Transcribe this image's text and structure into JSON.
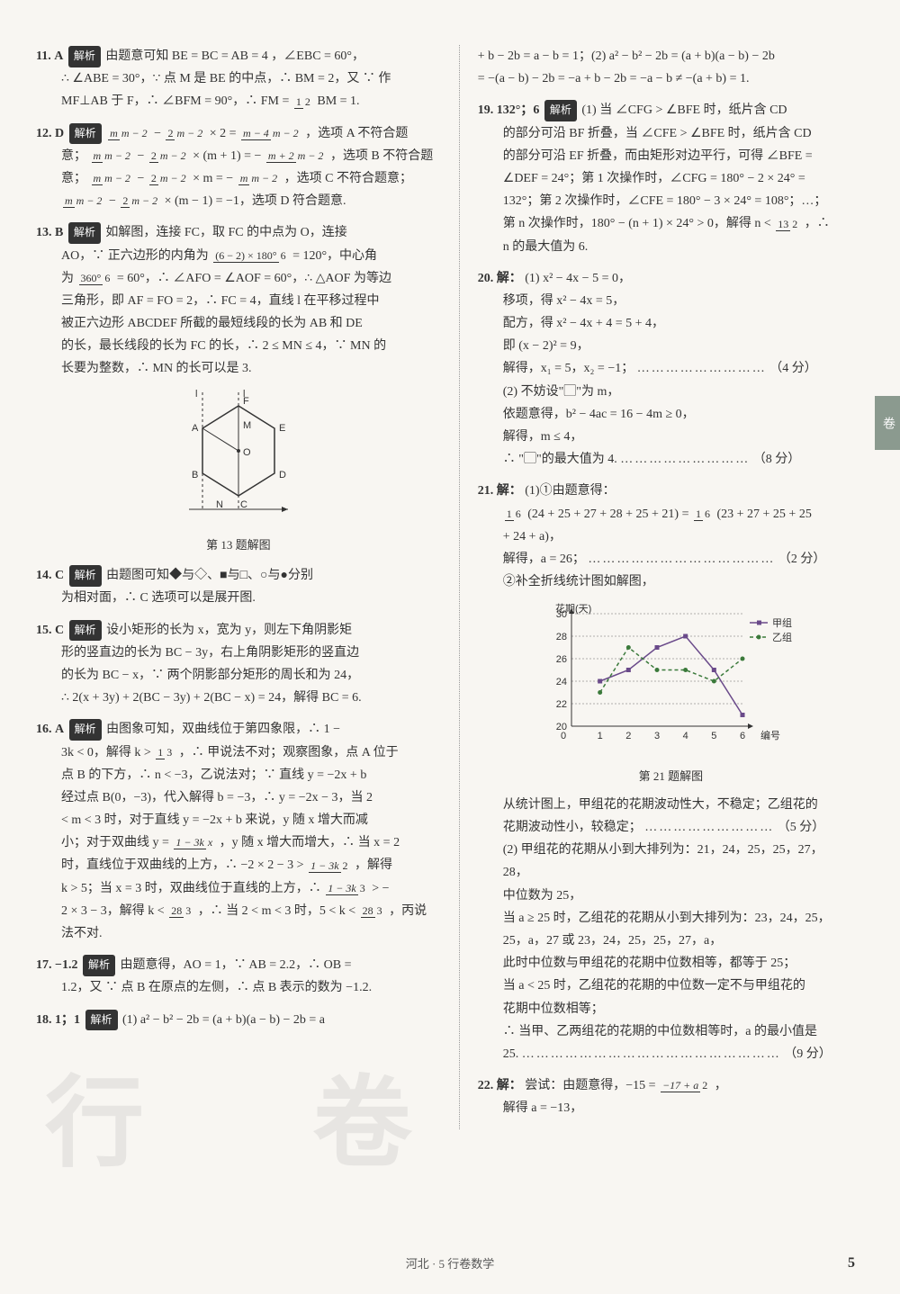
{
  "left": {
    "q11": {
      "num": "11.",
      "ans": "A",
      "tag": "解析",
      "t1": "由题意可知 BE = BC = AB = 4 ，∠EBC = 60°，",
      "t2": "∴ ∠ABE = 30°，∵ 点 M 是 BE 的中点，∴ BM = 2，又 ∵ 作",
      "t3_a": "MF⊥AB 于 F，∴ ∠BFM = 90°，∴ FM =",
      "f1n": "1",
      "f1d": "2",
      "t3_b": "BM = 1."
    },
    "q12": {
      "num": "12.",
      "ans": "D",
      "tag": "解析",
      "l1a": "m",
      "l1b": "m − 2",
      "l1c": "2",
      "l1d": "m − 2",
      "l1e": "× 2 =",
      "l1f": "m − 4",
      "l1g": "m − 2",
      "l1h": "，选项 A 不符合题",
      "l2a": "意；",
      "l2b": "m",
      "l2c": "m − 2",
      "l2d": "2",
      "l2e": "m − 2",
      "l2f": "× (m + 1) = −",
      "l2g": "m + 2",
      "l2h": "m − 2",
      "l2i": "，选项 B 不符合题",
      "l3a": "意；",
      "l3b": "m",
      "l3c": "m − 2",
      "l3d": "2",
      "l3e": "m − 2",
      "l3f": "× m = −",
      "l3g": "m",
      "l3h": "m − 2",
      "l3i": "，选项 C 不符合题意；",
      "l4a": "m",
      "l4b": "m − 2",
      "l4c": "2",
      "l4d": "m − 2",
      "l4e": "× (m − 1) = −1，选项 D 符合题意."
    },
    "q13": {
      "num": "13.",
      "ans": "B",
      "tag": "解析",
      "t1": "如解图，连接 FC，取 FC 的中点为 O，连接",
      "t2a": "AO，∵ 正六边形的内角为",
      "f1n": "(6 − 2) × 180°",
      "f1d": "6",
      "t2b": "= 120°，中心角",
      "t3a": "为",
      "f2n": "360°",
      "f2d": "6",
      "t3b": "= 60°，∴ ∠AFO = ∠AOF = 60°，∴ △AOF 为等边",
      "t4": "三角形，即 AF = FO = 2，∴ FC = 4，直线 l 在平移过程中",
      "t5": "被正六边形 ABCDEF 所截的最短线段的长为 AB 和 DE",
      "t6": "的长，最长线段的长为 FC 的长，∴ 2 ≤ MN ≤ 4，∵ MN 的",
      "t7": "长要为整数，∴ MN 的长可以是 3.",
      "caption": "第 13 题解图",
      "hex": {
        "labels": [
          "A",
          "B",
          "C",
          "D",
          "E",
          "F",
          "M",
          "N",
          "O",
          "l",
          "l"
        ]
      }
    },
    "q14": {
      "num": "14.",
      "ans": "C",
      "tag": "解析",
      "t1": "由题图可知◆与◇、■与□、○与●分别",
      "t2": "为相对面，∴ C 选项可以是展开图."
    },
    "q15": {
      "num": "15.",
      "ans": "C",
      "tag": "解析",
      "t1": "设小矩形的长为 x，宽为 y，则左下角阴影矩",
      "t2": "形的竖直边的长为 BC − 3y，右上角阴影矩形的竖直边",
      "t3": "的长为 BC − x，∵ 两个阴影部分矩形的周长和为 24，",
      "t4": "∴ 2(x + 3y) + 2(BC − 3y) + 2(BC − x) = 24，解得 BC = 6."
    },
    "q16": {
      "num": "16.",
      "ans": "A",
      "tag": "解析",
      "t1": "由图象可知，双曲线位于第四象限，∴ 1 −",
      "t2a": "3k < 0，解得 k >",
      "f1n": "1",
      "f1d": "3",
      "t2b": "，∴ 甲说法不对；观察图象，点 A 位于",
      "t3": "点 B 的下方，∴ n < −3，乙说法对；∵ 直线 y = −2x + b",
      "t4": "经过点 B(0，−3)，代入解得 b = −3，∴ y = −2x − 3，当 2",
      "t5": "< m < 3 时，对于直线 y = −2x + b 来说，y 随 x 增大而减",
      "t6a": "小；对于双曲线 y =",
      "f2n": "1 − 3k",
      "f2d": "x",
      "t6b": "，y 随 x 增大而增大，∴ 当 x = 2",
      "t7a": "时，直线位于双曲线的上方，∴ −2 × 2 − 3 >",
      "f3n": "1 − 3k",
      "f3d": "2",
      "t7b": "，解得",
      "t8a": "k > 5；当 x = 3 时，双曲线位于直线的上方，∴",
      "f4n": "1 − 3k",
      "f4d": "3",
      "t8b": "> −",
      "t9a": "2 × 3 − 3，解得 k <",
      "f5n": "28",
      "f5d": "3",
      "t9b": "，∴ 当 2 < m < 3 时，5 < k <",
      "f6n": "28",
      "f6d": "3",
      "t9c": "，丙说",
      "t10": "法不对."
    },
    "q17": {
      "num": "17.",
      "ans": "−1.2",
      "tag": "解析",
      "t1": "由题意得，AO = 1，∵ AB = 2.2，∴ OB =",
      "t2": "1.2，又 ∵ 点 B 在原点的左侧，∴ 点 B 表示的数为 −1.2."
    },
    "q18": {
      "num": "18.",
      "ans": "1；1",
      "tag": "解析",
      "t1": "(1) a² − b² − 2b = (a + b)(a − b) − 2b = a"
    }
  },
  "right": {
    "q18c": {
      "t1": "+ b − 2b = a − b = 1；(2) a² − b² − 2b = (a + b)(a − b) − 2b",
      "t2": "= −(a − b) − 2b = −a + b − 2b = −a − b ≠ −(a + b) = 1."
    },
    "q19": {
      "num": "19.",
      "ans": "132°；6",
      "tag": "解析",
      "t1": "(1) 当 ∠CFG > ∠BFE 时，纸片含 CD",
      "t2": "的部分可沿 BF 折叠，当 ∠CFE > ∠BFE 时，纸片含 CD",
      "t3": "的部分可沿 EF 折叠，而由矩形对边平行，可得 ∠BFE =",
      "t4": "∠DEF = 24°；第 1 次操作时，∠CFG = 180° − 2 × 24° =",
      "t5": "132°；第 2 次操作时，∠CFE = 180° − 3 × 24° = 108°；…；",
      "t6a": "第 n 次操作时，180° − (n + 1) × 24° > 0，解得 n <",
      "f1n": "13",
      "f1d": "2",
      "t6b": "，∴",
      "t7": "n 的最大值为 6."
    },
    "q20": {
      "num": "20.",
      "head": "解：",
      "t1": "(1) x² − 4x − 5 = 0，",
      "t2": "移项，得 x² − 4x = 5，",
      "t3": "配方，得 x² − 4x + 4 = 5 + 4，",
      "t4": "即 (x − 2)² = 9，",
      "t5": "解得，x₁ = 5，x₂ = −1；",
      "dots1": "………………………",
      "s1": "（4 分）",
      "t6": "(2) 不妨设\"▢\"为 m，",
      "t7": "依题意得，b² − 4ac = 16 − 4m ≥ 0，",
      "t8": "解得，m ≤ 4，",
      "t9": "∴ \"▢\"的最大值为 4.",
      "dots2": "………………………",
      "s2": "（8 分）"
    },
    "q21": {
      "num": "21.",
      "head": "解：",
      "t1": "(1)①由题意得：",
      "t2a": "",
      "f1n": "1",
      "f1d": "6",
      "t2b": "(24 + 25 + 27 + 28 + 25 + 21) =",
      "f2n": "1",
      "f2d": "6",
      "t2c": "(23 + 27 + 25 + 25",
      "t3": "+ 24 + a)，",
      "t4": "解得，a = 26；",
      "dots1": "…………………………………",
      "s1": "（2 分）",
      "t5": "②补全折线统计图如解图，",
      "chart": {
        "ylabel": "花期(天)",
        "xlabel": "编号",
        "legend_a": "甲组",
        "legend_b": "乙组",
        "yticks": [
          20,
          22,
          24,
          26,
          28,
          30
        ],
        "xticks": [
          0,
          1,
          2,
          3,
          4,
          5,
          6
        ],
        "a_points": [
          [
            1,
            24
          ],
          [
            2,
            25
          ],
          [
            3,
            27
          ],
          [
            4,
            28
          ],
          [
            5,
            25
          ],
          [
            6,
            21
          ]
        ],
        "b_points": [
          [
            1,
            23
          ],
          [
            2,
            27
          ],
          [
            3,
            25
          ],
          [
            4,
            25
          ],
          [
            5,
            24
          ],
          [
            6,
            26
          ]
        ],
        "colors": {
          "a": "#6a4a8a",
          "b": "#3b7a3b",
          "axis": "#333333",
          "grid": "#666666",
          "bg": "#f8f6f2"
        },
        "caption": "第 21 题解图"
      },
      "t6": "从统计图上，甲组花的花期波动性大，不稳定；乙组花的",
      "t7": "花期波动性小，较稳定；",
      "dots2": "………………………",
      "s2": "（5 分）",
      "t8": "(2) 甲组花的花期从小到大排列为：21，24，25，25，27，",
      "t9": "28，",
      "t10": "中位数为 25，",
      "t11": "当 a ≥ 25 时，乙组花的花期从小到大排列为：23，24，25，",
      "t12": "25，a，27 或 23，24，25，25，27，a，",
      "t13": "此时中位数与甲组花的花期中位数相等，都等于 25；",
      "t14": "当 a < 25 时，乙组花的花期的中位数一定不与甲组花的",
      "t15": "花期中位数相等；",
      "t16": "∴ 当甲、乙两组花的花期的中位数相等时，a 的最小值是",
      "t17": "25.",
      "dots3": "………………………………………………",
      "s3": "（9 分）"
    },
    "q22": {
      "num": "22.",
      "head": "解：",
      "t1a": "尝试：由题意得，−15 =",
      "f1n": "−17 + a",
      "f1d": "2",
      "t1b": "，",
      "t2": "解得 a = −13，"
    }
  },
  "footer": "河北 · 5  行卷数学",
  "pagenum": "5",
  "sidetab": "卷",
  "watermark": "行 卷"
}
